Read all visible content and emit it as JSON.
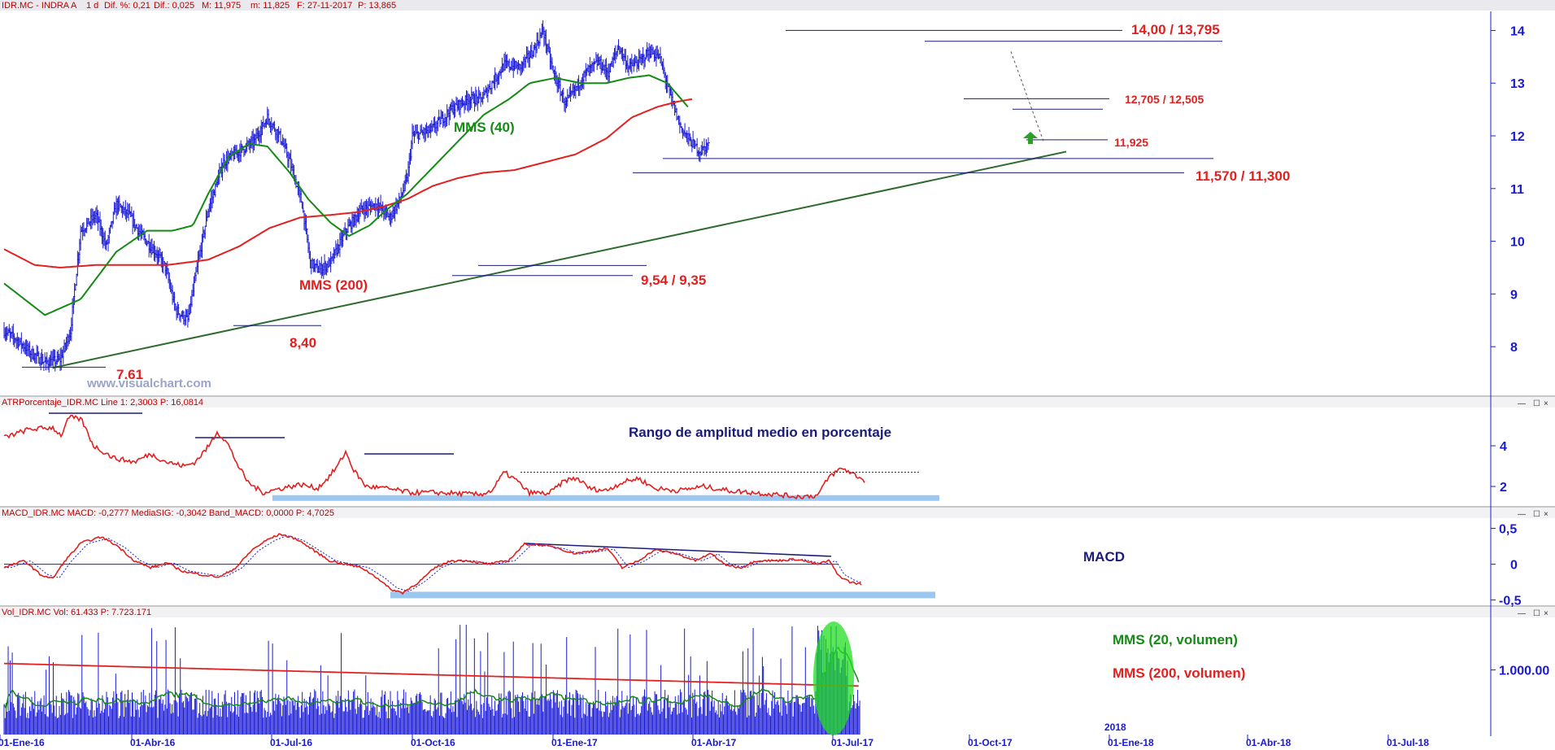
{
  "header": {
    "symbol": "IDR.MC - INDRA A",
    "period": "1 d",
    "change_pct_label": "Dif. %: 0,21",
    "change_label": "Dif.: 0,025",
    "high_label": "M: 11,975",
    "low_label": "m: 11,825",
    "date_label": "F: 27-11-2017",
    "price_label": "P: 13,865"
  },
  "watermark": "www.visualchart.com",
  "panels": {
    "atr_title": "ATRPorcentaje_IDR.MC  Line 1: 2,3003  P: 16,0814",
    "macd_title": "MACD_IDR.MC  MACD: -0,2777  MediaSIG: -0,3042  Band_MACD: 0,0000  P: 4,7025",
    "vol_title": "Vol_IDR.MC  Vol: 61.433  P: 7.723.171"
  },
  "annotations": {
    "mms40": "MMS (40)",
    "mms200": "MMS (200)",
    "r1": "14,00 / 13,795",
    "r2": "12,705 / 12,505",
    "r3": "11,925",
    "s1": "11,570 / 11,300",
    "s2": "9,54 / 9,35",
    "s3": "8,40",
    "s4": "7.61",
    "atr_label": "Rango de amplitud medio en porcentaje",
    "macd_label": "MACD",
    "vol_mm20": "MMS (20, volumen)",
    "vol_mm200": "MMS (200, volumen)",
    "year_label": "2018"
  },
  "colors": {
    "price_bars": "#1a1ad6",
    "mms200": "#e32020",
    "mms40": "#158a15",
    "trendline": "#2e6b2e",
    "atr_line": "#e32020",
    "macd_line": "#e32020",
    "signal_line": "#1a1ad6",
    "volume_bars": "#1a1ad6",
    "highlight": "#9cc8f0",
    "volume_spike_ellipse": "#22dd22"
  },
  "chart_data": [
    {
      "type": "line",
      "name_hint": "price",
      "x_ticks": [
        "01-Ene-16",
        "01-Abr-16",
        "01-Jul-16",
        "01-Oct-16",
        "01-Ene-17",
        "01-Abr-17",
        "01-Jul-17",
        "01-Oct-17",
        "01-Ene-18",
        "01-Abr-18",
        "01-Jul-18"
      ],
      "ylim": [
        7.2,
        14.3
      ],
      "y_ticks": [
        "8",
        "9",
        "10",
        "11",
        "12",
        "13",
        "14"
      ],
      "price_path": [
        [
          0,
          8.3
        ],
        [
          15,
          8.1
        ],
        [
          25,
          7.9
        ],
        [
          40,
          7.7
        ],
        [
          55,
          7.75
        ],
        [
          65,
          8.3
        ],
        [
          75,
          10.2
        ],
        [
          90,
          10.5
        ],
        [
          100,
          9.9
        ],
        [
          110,
          10.7
        ],
        [
          122,
          10.5
        ],
        [
          135,
          10.1
        ],
        [
          148,
          9.8
        ],
        [
          158,
          9.5
        ],
        [
          168,
          8.7
        ],
        [
          180,
          8.5
        ],
        [
          190,
          9.6
        ],
        [
          200,
          10.6
        ],
        [
          215,
          11.5
        ],
        [
          230,
          11.7
        ],
        [
          245,
          11.9
        ],
        [
          258,
          12.35
        ],
        [
          270,
          12.0
        ],
        [
          280,
          11.5
        ],
        [
          292,
          10.7
        ],
        [
          300,
          9.6
        ],
        [
          308,
          9.45
        ],
        [
          320,
          9.6
        ],
        [
          335,
          10.2
        ],
        [
          350,
          10.6
        ],
        [
          365,
          10.7
        ],
        [
          378,
          10.45
        ],
        [
          388,
          10.8
        ],
        [
          395,
          11.2
        ],
        [
          400,
          12.0
        ],
        [
          418,
          12.1
        ],
        [
          438,
          12.5
        ],
        [
          455,
          12.7
        ],
        [
          468,
          12.7
        ],
        [
          478,
          13.0
        ],
        [
          490,
          13.35
        ],
        [
          505,
          13.3
        ],
        [
          518,
          13.6
        ],
        [
          528,
          14.0
        ],
        [
          538,
          13.2
        ],
        [
          550,
          12.6
        ],
        [
          560,
          12.9
        ],
        [
          570,
          13.2
        ],
        [
          582,
          13.4
        ],
        [
          592,
          13.2
        ],
        [
          602,
          13.7
        ],
        [
          612,
          13.3
        ],
        [
          622,
          13.4
        ],
        [
          632,
          13.6
        ],
        [
          642,
          13.5
        ],
        [
          652,
          12.8
        ],
        [
          662,
          12.2
        ],
        [
          672,
          11.9
        ],
        [
          682,
          11.7
        ],
        [
          690,
          11.85
        ]
      ],
      "mms40_path": [
        [
          0,
          9.2
        ],
        [
          40,
          8.6
        ],
        [
          75,
          8.9
        ],
        [
          110,
          9.8
        ],
        [
          140,
          10.2
        ],
        [
          165,
          10.2
        ],
        [
          185,
          10.3
        ],
        [
          200,
          10.9
        ],
        [
          220,
          11.6
        ],
        [
          240,
          11.85
        ],
        [
          258,
          11.8
        ],
        [
          280,
          11.3
        ],
        [
          298,
          10.8
        ],
        [
          320,
          10.35
        ],
        [
          338,
          10.1
        ],
        [
          358,
          10.3
        ],
        [
          375,
          10.6
        ],
        [
          395,
          10.9
        ],
        [
          420,
          11.4
        ],
        [
          445,
          11.9
        ],
        [
          470,
          12.4
        ],
        [
          495,
          12.7
        ],
        [
          515,
          13.0
        ],
        [
          540,
          13.1
        ],
        [
          565,
          13.0
        ],
        [
          590,
          13.0
        ],
        [
          612,
          13.1
        ],
        [
          632,
          13.15
        ],
        [
          650,
          13.0
        ],
        [
          670,
          12.55
        ]
      ],
      "mms200_path": [
        [
          0,
          9.85
        ],
        [
          30,
          9.55
        ],
        [
          55,
          9.5
        ],
        [
          90,
          9.55
        ],
        [
          120,
          9.55
        ],
        [
          160,
          9.55
        ],
        [
          200,
          9.65
        ],
        [
          230,
          9.9
        ],
        [
          260,
          10.25
        ],
        [
          290,
          10.45
        ],
        [
          320,
          10.5
        ],
        [
          345,
          10.55
        ],
        [
          370,
          10.65
        ],
        [
          395,
          10.8
        ],
        [
          420,
          11.05
        ],
        [
          445,
          11.2
        ],
        [
          470,
          11.3
        ],
        [
          500,
          11.35
        ],
        [
          530,
          11.5
        ],
        [
          560,
          11.65
        ],
        [
          590,
          11.95
        ],
        [
          615,
          12.35
        ],
        [
          640,
          12.55
        ],
        [
          660,
          12.65
        ],
        [
          675,
          12.7
        ]
      ],
      "trendline": [
        [
          0,
          7.6
        ],
        [
          690,
          11.7
        ]
      ],
      "levels": [
        {
          "label_ref": "r1",
          "value": 14.0
        },
        {
          "label_ref": "r1b",
          "value": 13.795
        },
        {
          "label_ref": "r2",
          "value": 12.705
        },
        {
          "label_ref": "r2b",
          "value": 12.505
        },
        {
          "label_ref": "r3",
          "value": 11.925
        },
        {
          "label_ref": "s1",
          "value": 11.57
        },
        {
          "label_ref": "s1b",
          "value": 11.3
        },
        {
          "label_ref": "s2",
          "value": 9.54
        },
        {
          "label_ref": "s2b",
          "value": 9.35
        },
        {
          "label_ref": "s3",
          "value": 8.4
        },
        {
          "label_ref": "s4",
          "value": 7.61
        }
      ]
    },
    {
      "type": "line",
      "name_hint": "atr_percent",
      "ylim": [
        1.2,
        5.8
      ],
      "y_ticks": [
        "2",
        "4"
      ],
      "path": [
        [
          0,
          4.4
        ],
        [
          30,
          4.8
        ],
        [
          60,
          4.9
        ],
        [
          70,
          4.5
        ],
        [
          80,
          5.4
        ],
        [
          95,
          5.3
        ],
        [
          110,
          4.0
        ],
        [
          135,
          3.4
        ],
        [
          160,
          3.2
        ],
        [
          180,
          3.6
        ],
        [
          200,
          3.2
        ],
        [
          222,
          3.0
        ],
        [
          235,
          3.2
        ],
        [
          252,
          4.0
        ],
        [
          262,
          4.7
        ],
        [
          275,
          4.1
        ],
        [
          288,
          3.0
        ],
        [
          300,
          2.2
        ],
        [
          318,
          1.7
        ],
        [
          340,
          1.9
        ],
        [
          365,
          2.1
        ],
        [
          385,
          1.9
        ],
        [
          398,
          2.4
        ],
        [
          410,
          3.0
        ],
        [
          420,
          3.7
        ],
        [
          430,
          2.8
        ],
        [
          445,
          2.0
        ],
        [
          470,
          1.9
        ],
        [
          500,
          1.7
        ],
        [
          530,
          1.7
        ],
        [
          560,
          1.65
        ],
        [
          585,
          1.6
        ],
        [
          600,
          1.8
        ],
        [
          615,
          2.7
        ],
        [
          630,
          2.3
        ],
        [
          645,
          1.7
        ],
        [
          670,
          1.65
        ],
        [
          690,
          2.3
        ],
        [
          705,
          2.4
        ],
        [
          720,
          1.9
        ],
        [
          740,
          1.8
        ],
        [
          760,
          2.2
        ],
        [
          780,
          2.4
        ],
        [
          800,
          1.9
        ],
        [
          830,
          1.8
        ],
        [
          860,
          2.0
        ],
        [
          890,
          1.8
        ],
        [
          920,
          1.7
        ],
        [
          950,
          1.6
        ],
        [
          975,
          1.5
        ],
        [
          1000,
          1.55
        ],
        [
          1015,
          2.5
        ],
        [
          1030,
          2.9
        ],
        [
          1045,
          2.6
        ],
        [
          1058,
          2.3
        ]
      ],
      "flat_marks": [
        {
          "x0": 60,
          "x1": 175,
          "y": 5.6
        },
        {
          "x0": 240,
          "x1": 350,
          "y": 4.4
        },
        {
          "x0": 448,
          "x1": 558,
          "y": 3.6
        }
      ],
      "dotted_level": {
        "x0": 640,
        "x1": 1130,
        "y": 2.7
      },
      "highlight_band": {
        "x0": 335,
        "x1": 1155,
        "y": 1.45
      }
    },
    {
      "type": "line",
      "name_hint": "macd",
      "ylim": [
        -0.55,
        0.62
      ],
      "y_ticks": [
        "0,5",
        "0",
        "-0,5"
      ],
      "macd_path": [
        [
          0,
          -0.05
        ],
        [
          25,
          0.05
        ],
        [
          45,
          -0.15
        ],
        [
          60,
          -0.2
        ],
        [
          75,
          0.05
        ],
        [
          95,
          0.3
        ],
        [
          120,
          0.38
        ],
        [
          140,
          0.25
        ],
        [
          160,
          0.05
        ],
        [
          180,
          -0.05
        ],
        [
          200,
          0.02
        ],
        [
          220,
          -0.1
        ],
        [
          245,
          -0.15
        ],
        [
          265,
          -0.18
        ],
        [
          285,
          -0.05
        ],
        [
          305,
          0.2
        ],
        [
          325,
          0.35
        ],
        [
          340,
          0.42
        ],
        [
          360,
          0.35
        ],
        [
          380,
          0.2
        ],
        [
          400,
          0.05
        ],
        [
          420,
          0.0
        ],
        [
          440,
          -0.05
        ],
        [
          460,
          -0.2
        ],
        [
          475,
          -0.35
        ],
        [
          490,
          -0.4
        ],
        [
          510,
          -0.25
        ],
        [
          530,
          -0.05
        ],
        [
          550,
          0.05
        ],
        [
          570,
          0.05
        ],
        [
          595,
          0.0
        ],
        [
          620,
          0.05
        ],
        [
          640,
          0.28
        ],
        [
          660,
          0.27
        ],
        [
          680,
          0.23
        ],
        [
          700,
          0.15
        ],
        [
          720,
          0.18
        ],
        [
          742,
          0.22
        ],
        [
          760,
          -0.05
        ],
        [
          780,
          0.05
        ],
        [
          800,
          0.2
        ],
        [
          825,
          0.15
        ],
        [
          850,
          0.05
        ],
        [
          870,
          0.15
        ],
        [
          885,
          0.0
        ],
        [
          905,
          -0.05
        ],
        [
          925,
          0.05
        ],
        [
          950,
          0.05
        ],
        [
          975,
          0.07
        ],
        [
          1000,
          0.0
        ],
        [
          1015,
          0.05
        ],
        [
          1025,
          -0.15
        ],
        [
          1040,
          -0.25
        ],
        [
          1055,
          -0.28
        ]
      ],
      "signal_offset": 8,
      "zero_line": 0,
      "upper_trend": [
        [
          645,
          0.29
        ],
        [
          1022,
          0.11
        ]
      ],
      "highlight_band": {
        "x0": 480,
        "x1": 1150,
        "y": -0.43
      }
    },
    {
      "type": "bar",
      "name_hint": "volume",
      "ylim": [
        0,
        1800000
      ],
      "y_ticks": [
        "1.000.00"
      ],
      "spike_zone": {
        "x0": 1003,
        "x1": 1043
      }
    }
  ]
}
